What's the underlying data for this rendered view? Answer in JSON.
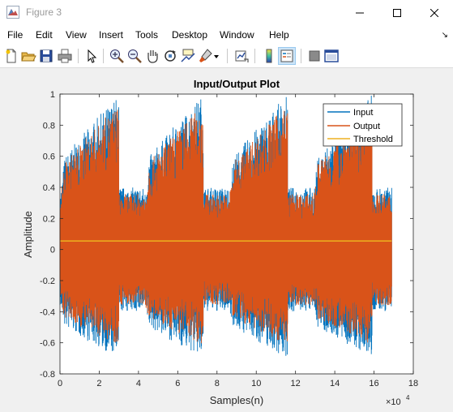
{
  "window": {
    "title": "Figure 3"
  },
  "menu": [
    "File",
    "Edit",
    "View",
    "Insert",
    "Tools",
    "Desktop",
    "Window",
    "Help"
  ],
  "toolbar_icons": [
    "new-figure-icon",
    "open-file-icon",
    "save-icon",
    "print-icon",
    "pointer-icon",
    "zoom-in-icon",
    "zoom-out-icon",
    "pan-icon",
    "rotate-3d-icon",
    "data-cursor-icon",
    "brush-icon",
    "brush-dropdown-icon",
    "link-plot-icon",
    "colorbar-icon",
    "legend-icon",
    "hide-plot-tools-icon",
    "show-plot-tools-icon"
  ],
  "colors": {
    "input": "#0072bd",
    "output": "#d95319",
    "threshold": "#edb120"
  },
  "chart_data": {
    "type": "line",
    "title": "Input/Output Plot",
    "xlabel": "Samples(n)",
    "ylabel": "Amplitude",
    "x_exponent_label": "×10",
    "x_exponent": "4",
    "xlim": [
      0,
      180000
    ],
    "ylim": [
      -0.8,
      1
    ],
    "xticks": [
      "0",
      "2",
      "4",
      "6",
      "8",
      "10",
      "12",
      "14",
      "16",
      "18"
    ],
    "yticks": [
      "-0.8",
      "-0.6",
      "-0.4",
      "-0.2",
      "0",
      "0.2",
      "0.4",
      "0.6",
      "0.8",
      "1"
    ],
    "grid": false,
    "legend_position": "top-right",
    "series": [
      {
        "name": "Input",
        "color": "#0072bd",
        "segment_starts": [
          0,
          43000,
          86000,
          129000
        ],
        "segment_length": 40000,
        "end": 169000,
        "peak_max": 1.0,
        "peak_min": -0.7,
        "tail_max": 0.4,
        "tail_min": -0.4
      },
      {
        "name": "Output",
        "color": "#d95319",
        "segment_starts": [
          0,
          43000,
          86000,
          129000
        ],
        "segment_length": 40000,
        "end": 169000,
        "peak_max": 1.0,
        "peak_min": -0.65,
        "tail_max": 0.38,
        "tail_min": -0.38
      },
      {
        "name": "Threshold",
        "color": "#edb120",
        "x": [
          0,
          169000
        ],
        "values": [
          0.055,
          0.055
        ]
      }
    ]
  }
}
